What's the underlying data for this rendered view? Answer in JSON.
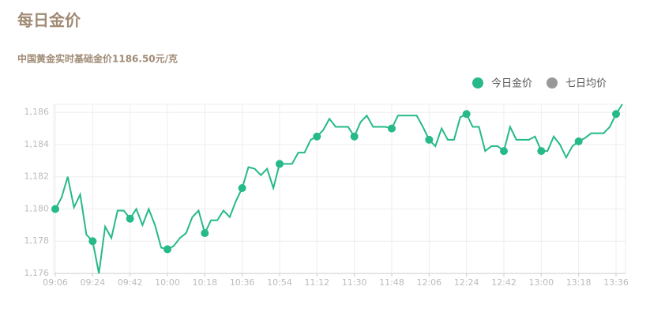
{
  "chart_data": {
    "type": "line",
    "title": "每日金价",
    "subtitle": "中国黄金实时基础金价1186.50元/克",
    "legend": "top-right",
    "grid": true,
    "categories": [
      "09:06",
      null,
      null,
      null,
      null,
      null,
      "09:24",
      null,
      null,
      null,
      null,
      null,
      "09:42",
      null,
      null,
      null,
      null,
      null,
      "10:00",
      null,
      null,
      null,
      null,
      null,
      "10:18",
      null,
      null,
      null,
      null,
      null,
      "10:36",
      null,
      null,
      null,
      null,
      null,
      "10:54",
      null,
      null,
      null,
      null,
      null,
      "11:12",
      null,
      null,
      null,
      null,
      null,
      "11:30",
      null,
      null,
      null,
      null,
      null,
      "11:48",
      null,
      null,
      null,
      null,
      null,
      "12:06",
      null,
      null,
      null,
      null,
      null,
      "12:24",
      null,
      null,
      null,
      null,
      null,
      "12:42",
      null,
      null,
      null,
      null,
      null,
      "13:00",
      null,
      null,
      null,
      null,
      null,
      "13:18",
      null,
      null,
      null,
      null,
      null,
      "13:36",
      null
    ],
    "series": [
      {
        "name": "今日金价",
        "color": "#26b98a",
        "values": [
          1180.0,
          1180.7,
          1182.0,
          1180.1,
          1180.9,
          1178.4,
          1178.0,
          1176.0,
          1178.9,
          1178.2,
          1179.9,
          1179.9,
          1179.4,
          1180.0,
          1179.0,
          1180.0,
          1179.0,
          1177.6,
          1177.5,
          1177.7,
          1178.2,
          1178.5,
          1179.5,
          1179.9,
          1178.5,
          1179.3,
          1179.3,
          1179.9,
          1179.5,
          1180.5,
          1181.3,
          1182.6,
          1182.5,
          1182.1,
          1182.5,
          1181.3,
          1182.8,
          1182.8,
          1182.8,
          1183.5,
          1183.5,
          1184.3,
          1184.5,
          1184.9,
          1185.6,
          1185.1,
          1185.1,
          1185.1,
          1184.5,
          1185.4,
          1185.8,
          1185.1,
          1185.1,
          1185.1,
          1185.0,
          1185.8,
          1185.8,
          1185.8,
          1185.8,
          1185.1,
          1184.3,
          1183.9,
          1185.0,
          1184.3,
          1184.3,
          1185.7,
          1185.9,
          1185.1,
          1185.1,
          1183.6,
          1183.9,
          1183.9,
          1183.6,
          1185.1,
          1184.3,
          1184.3,
          1184.3,
          1184.5,
          1183.6,
          1183.6,
          1184.5,
          1184.0,
          1183.2,
          1183.9,
          1184.2,
          1184.4,
          1184.7,
          1184.7,
          1184.7,
          1185.1,
          1185.9,
          1186.5
        ]
      },
      {
        "name": "七日均价",
        "color": "#999999",
        "values": [
          null,
          null,
          null,
          null,
          null,
          null,
          null,
          null,
          null,
          null,
          null,
          null,
          null,
          null,
          null,
          null,
          null,
          null,
          null,
          null,
          null,
          null,
          null,
          null,
          null,
          null,
          null,
          null,
          null,
          null,
          null,
          null,
          null,
          null,
          null,
          null,
          null,
          null,
          null,
          null,
          null,
          null,
          null,
          null,
          null,
          null,
          null,
          null,
          null,
          null,
          null,
          null,
          null,
          null,
          null,
          null,
          null,
          null,
          null,
          null,
          null,
          null,
          null,
          null,
          null,
          null,
          null,
          null,
          null,
          null,
          null,
          null,
          null,
          null,
          null,
          null,
          null,
          null,
          null,
          null,
          null,
          null,
          null,
          null,
          null,
          null,
          null,
          null,
          null,
          null,
          null,
          null
        ]
      }
    ],
    "ylim": [
      1176,
      1186.5
    ],
    "yticks": [
      {
        "value": 1176,
        "label": "1,176"
      },
      {
        "value": 1178,
        "label": "1,178"
      },
      {
        "value": 1180,
        "label": "1,180"
      },
      {
        "value": 1182,
        "label": "1,182"
      },
      {
        "value": 1184,
        "label": "1,184"
      },
      {
        "value": 1186,
        "label": "1,186"
      }
    ]
  }
}
